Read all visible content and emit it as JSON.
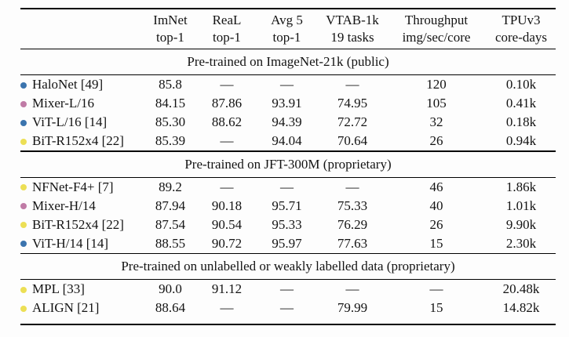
{
  "table": {
    "dash": "—",
    "bullet_colors": {
      "blue": "#3b74ae",
      "pink": "#c07ba6",
      "yellow": "#ecdf55"
    },
    "columns": [
      {
        "line1": "ImNet",
        "line2": "top-1"
      },
      {
        "line1": "ReaL",
        "line2": "top-1"
      },
      {
        "line1": "Avg 5",
        "line2": "top-1"
      },
      {
        "line1": "VTAB-1k",
        "line2": "19 tasks"
      },
      {
        "line1": "Throughput",
        "line2": "img/sec/core"
      },
      {
        "line1": "TPUv3",
        "line2": "core-days"
      }
    ],
    "sections": [
      {
        "title": "Pre-trained on ImageNet-21k (public)",
        "rows": [
          {
            "model": "HaloNet [49]",
            "bullet": "blue",
            "values": [
              "85.8",
              "—",
              "—",
              "—",
              "120",
              "0.10k"
            ]
          },
          {
            "model": "Mixer-L/16",
            "bullet": "pink",
            "values": [
              "84.15",
              "87.86",
              "93.91",
              "74.95",
              "105",
              "0.41k"
            ]
          },
          {
            "model": "ViT-L/16 [14]",
            "bullet": "blue",
            "values": [
              "85.30",
              "88.62",
              "94.39",
              "72.72",
              "32",
              "0.18k"
            ]
          },
          {
            "model": "BiT-R152x4 [22]",
            "bullet": "yellow",
            "values": [
              "85.39",
              "—",
              "94.04",
              "70.64",
              "26",
              "0.94k"
            ]
          }
        ]
      },
      {
        "title": "Pre-trained on JFT-300M (proprietary)",
        "rows": [
          {
            "model": "NFNet-F4+ [7]",
            "bullet": "yellow",
            "values": [
              "89.2",
              "—",
              "—",
              "—",
              "46",
              "1.86k"
            ]
          },
          {
            "model": "Mixer-H/14",
            "bullet": "pink",
            "values": [
              "87.94",
              "90.18",
              "95.71",
              "75.33",
              "40",
              "1.01k"
            ]
          },
          {
            "model": "BiT-R152x4 [22]",
            "bullet": "yellow",
            "values": [
              "87.54",
              "90.54",
              "95.33",
              "76.29",
              "26",
              "9.90k"
            ]
          },
          {
            "model": "ViT-H/14 [14]",
            "bullet": "blue",
            "values": [
              "88.55",
              "90.72",
              "95.97",
              "77.63",
              "15",
              "2.30k"
            ]
          }
        ]
      },
      {
        "title": "Pre-trained on unlabelled or weakly labelled data (proprietary)",
        "rows": [
          {
            "model": "MPL [33]",
            "bullet": "yellow",
            "values": [
              "90.0",
              "91.12",
              "—",
              "—",
              "—",
              "20.48k"
            ]
          },
          {
            "model": "ALIGN [21]",
            "bullet": "yellow",
            "values": [
              "88.64",
              "—",
              "—",
              "79.99",
              "15",
              "14.82k"
            ]
          }
        ]
      }
    ]
  }
}
